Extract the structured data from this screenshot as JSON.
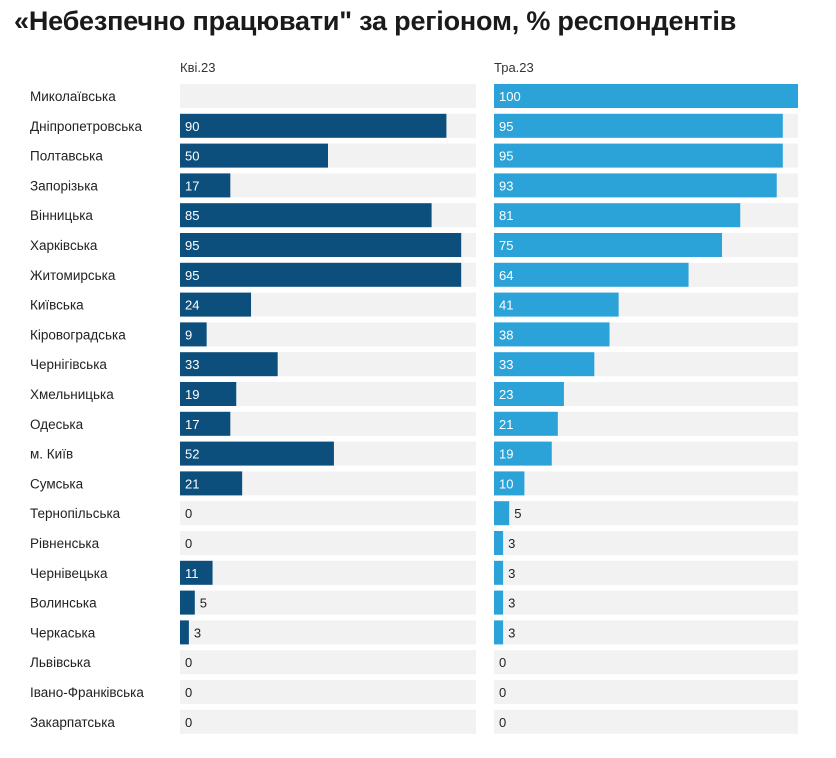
{
  "title": "«Небезпечно працювати\" за регіоном, % респондентів",
  "chart_data": {
    "type": "bar",
    "orientation": "horizontal",
    "layout": "two panels side by side",
    "title": "«Небезпечно працювати\" за регіоном, % респондентів",
    "xlim": [
      0,
      100
    ],
    "grid": false,
    "legend": "none",
    "categories": [
      "Миколаївська",
      "Дніпропетровська",
      "Полтавська",
      "Запорізька",
      "Вінницька",
      "Харківська",
      "Житомирська",
      "Київська",
      "Кіровоградська",
      "Чернігівська",
      "Хмельницька",
      "Одеська",
      "м. Київ",
      "Сумська",
      "Тернопільська",
      "Рівненська",
      "Чернівецька",
      "Волинська",
      "Черкаська",
      "Львівська",
      "Івано-Франківська",
      "Закарпатська"
    ],
    "series": [
      {
        "name": "Кві.23",
        "color": "#0d4f7c",
        "values": [
          null,
          90,
          50,
          17,
          85,
          95,
          95,
          24,
          9,
          33,
          19,
          17,
          52,
          21,
          0,
          0,
          11,
          5,
          3,
          0,
          0,
          0
        ]
      },
      {
        "name": "Тра.23",
        "color": "#2ba3d8",
        "values": [
          100,
          95,
          95,
          93,
          81,
          75,
          64,
          41,
          38,
          33,
          23,
          21,
          19,
          10,
          5,
          3,
          3,
          3,
          3,
          0,
          0,
          0
        ]
      }
    ],
    "track_color": "#f2f2f2"
  }
}
